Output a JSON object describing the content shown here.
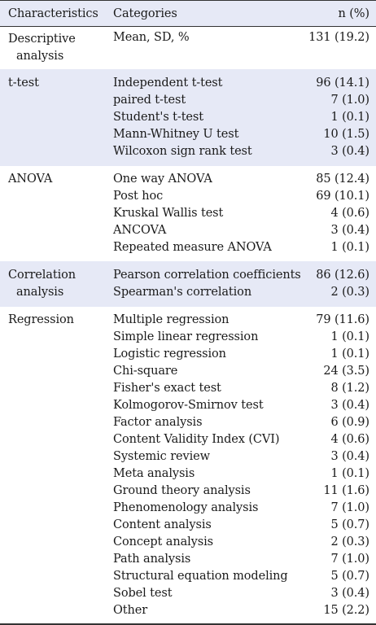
{
  "header": {
    "characteristics": "Characteristics",
    "categories": "Categories",
    "n": "n (%)"
  },
  "groups": [
    {
      "label_line1": "Descriptive",
      "label_line2": "analysis",
      "rows": [
        {
          "category": "Mean, SD, %",
          "n": "131 (19.2)"
        }
      ]
    },
    {
      "label_line1": "t-test",
      "label_line2": "",
      "rows": [
        {
          "category": "Independent t-test",
          "n": "96 (14.1)"
        },
        {
          "category": "paired t-test",
          "n": "7 (1.0)"
        },
        {
          "category": "Student's t-test",
          "n": "1 (0.1)"
        },
        {
          "category": "Mann-Whitney U test",
          "n": "10 (1.5)"
        },
        {
          "category": "Wilcoxon sign rank test",
          "n": "3 (0.4)"
        }
      ]
    },
    {
      "label_line1": "ANOVA",
      "label_line2": "",
      "rows": [
        {
          "category": "One way ANOVA",
          "n": "85 (12.4)"
        },
        {
          "category": "Post hoc",
          "n": "69 (10.1)"
        },
        {
          "category": "Kruskal Wallis test",
          "n": "4 (0.6)"
        },
        {
          "category": "ANCOVA",
          "n": "3 (0.4)"
        },
        {
          "category": "Repeated measure ANOVA",
          "n": "1 (0.1)"
        }
      ]
    },
    {
      "label_line1": "Correlation",
      "label_line2": "analysis",
      "rows": [
        {
          "category": "Pearson correlation coefficients",
          "n": "86 (12.6)"
        },
        {
          "category": "Spearman's correlation",
          "n": "2 (0.3)"
        }
      ]
    },
    {
      "label_line1": "Regression",
      "label_line2": "",
      "rows": [
        {
          "category": "Multiple regression",
          "n": "79 (11.6)"
        },
        {
          "category": "Simple linear regression",
          "n": "1 (0.1)"
        },
        {
          "category": "Logistic regression",
          "n": "1 (0.1)"
        },
        {
          "category": "Chi-square",
          "n": "24 (3.5)"
        },
        {
          "category": "Fisher's exact test",
          "n": "8 (1.2)"
        },
        {
          "category": "Kolmogorov-Smirnov test",
          "n": "3 (0.4)"
        },
        {
          "category": "Factor analysis",
          "n": "6 (0.9)"
        },
        {
          "category": "Content Validity Index (CVI)",
          "n": "4 (0.6)"
        },
        {
          "category": "Systemic review",
          "n": "3 (0.4)"
        },
        {
          "category": "Meta analysis",
          "n": "1 (0.1)"
        },
        {
          "category": "Ground theory analysis",
          "n": "11 (1.6)"
        },
        {
          "category": "Phenomenology analysis",
          "n": "7 (1.0)"
        },
        {
          "category": "Content analysis",
          "n": "5 (0.7)"
        },
        {
          "category": "Concept analysis",
          "n": "2 (0.3)"
        },
        {
          "category": "Path analysis",
          "n": "7 (1.0)"
        },
        {
          "category": "Structural equation modeling",
          "n": "5 (0.7)"
        },
        {
          "category": "Sobel test",
          "n": "3 (0.4)"
        },
        {
          "category": "Other",
          "n": "15 (2.2)"
        }
      ]
    }
  ]
}
